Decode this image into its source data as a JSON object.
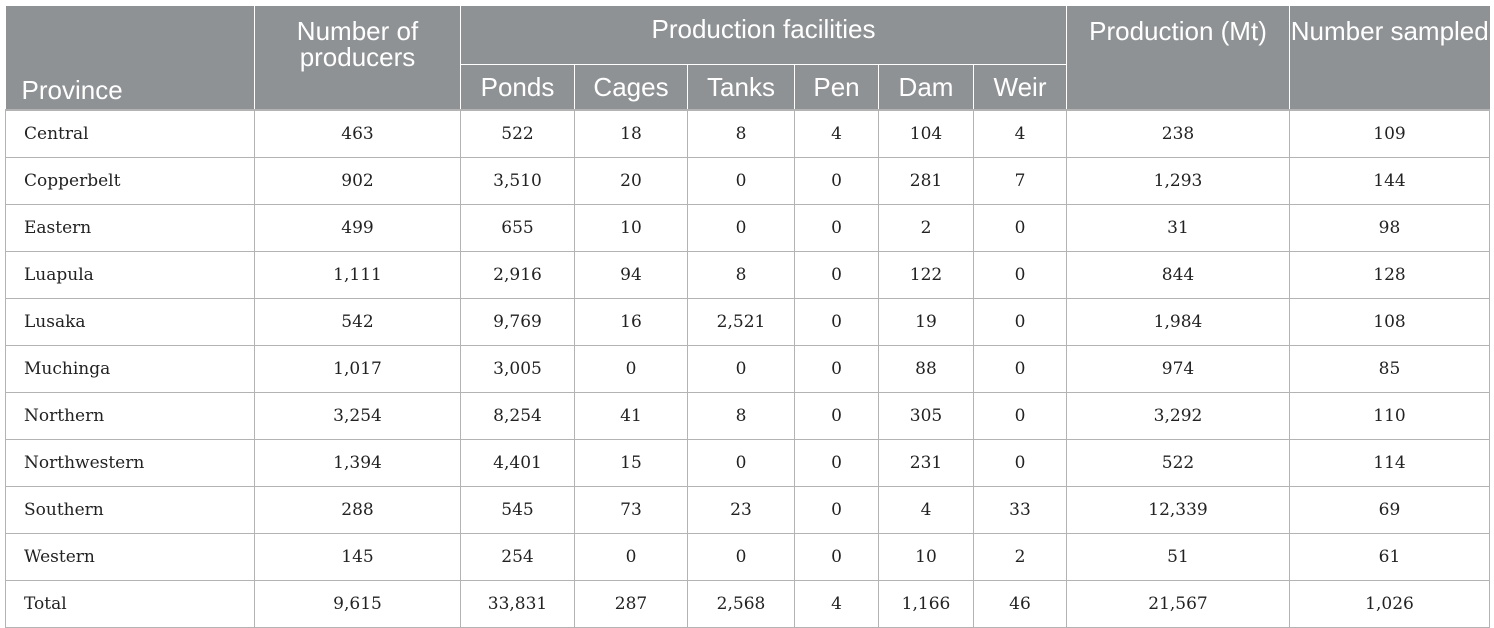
{
  "header": {
    "province": "Province",
    "producers": "Number of producers",
    "facilities_group": "Production facilities",
    "facilities": [
      "Ponds",
      "Cages",
      "Tanks",
      "Pen",
      "Dam",
      "Weir"
    ],
    "production": "Production (Mt)",
    "sampled": "Number sampled"
  },
  "rows": [
    {
      "province": "Central",
      "producers": "463",
      "ponds": "522",
      "cages": "18",
      "tanks": "8",
      "pen": "4",
      "dam": "104",
      "weir": "4",
      "production": "238",
      "sampled": "109"
    },
    {
      "province": "Copperbelt",
      "producers": "902",
      "ponds": "3,510",
      "cages": "20",
      "tanks": "0",
      "pen": "0",
      "dam": "281",
      "weir": "7",
      "production": "1,293",
      "sampled": "144"
    },
    {
      "province": "Eastern",
      "producers": "499",
      "ponds": "655",
      "cages": "10",
      "tanks": "0",
      "pen": "0",
      "dam": "2",
      "weir": "0",
      "production": "31",
      "sampled": "98"
    },
    {
      "province": "Luapula",
      "producers": "1,111",
      "ponds": "2,916",
      "cages": "94",
      "tanks": "8",
      "pen": "0",
      "dam": "122",
      "weir": "0",
      "production": "844",
      "sampled": "128"
    },
    {
      "province": "Lusaka",
      "producers": "542",
      "ponds": "9,769",
      "cages": "16",
      "tanks": "2,521",
      "pen": "0",
      "dam": "19",
      "weir": "0",
      "production": "1,984",
      "sampled": "108"
    },
    {
      "province": "Muchinga",
      "producers": "1,017",
      "ponds": "3,005",
      "cages": "0",
      "tanks": "0",
      "pen": "0",
      "dam": "88",
      "weir": "0",
      "production": "974",
      "sampled": "85"
    },
    {
      "province": "Northern",
      "producers": "3,254",
      "ponds": "8,254",
      "cages": "41",
      "tanks": "8",
      "pen": "0",
      "dam": "305",
      "weir": "0",
      "production": "3,292",
      "sampled": "110"
    },
    {
      "province": "Northwestern",
      "producers": "1,394",
      "ponds": "4,401",
      "cages": "15",
      "tanks": "0",
      "pen": "0",
      "dam": "231",
      "weir": "0",
      "production": "522",
      "sampled": "114"
    },
    {
      "province": "Southern",
      "producers": "288",
      "ponds": "545",
      "cages": "73",
      "tanks": "23",
      "pen": "0",
      "dam": "4",
      "weir": "33",
      "production": "12,339",
      "sampled": "69"
    },
    {
      "province": "Western",
      "producers": "145",
      "ponds": "254",
      "cages": "0",
      "tanks": "0",
      "pen": "0",
      "dam": "10",
      "weir": "2",
      "production": "51",
      "sampled": "61"
    },
    {
      "province": "Total",
      "producers": "9,615",
      "ponds": "33,831",
      "cages": "287",
      "tanks": "2,568",
      "pen": "4",
      "dam": "1,166",
      "weir": "46",
      "production": "21,567",
      "sampled": "1,026"
    }
  ],
  "colors": {
    "header_bg": "#8e9294",
    "header_text": "#ffffff",
    "grid": "#b3b3b3"
  }
}
